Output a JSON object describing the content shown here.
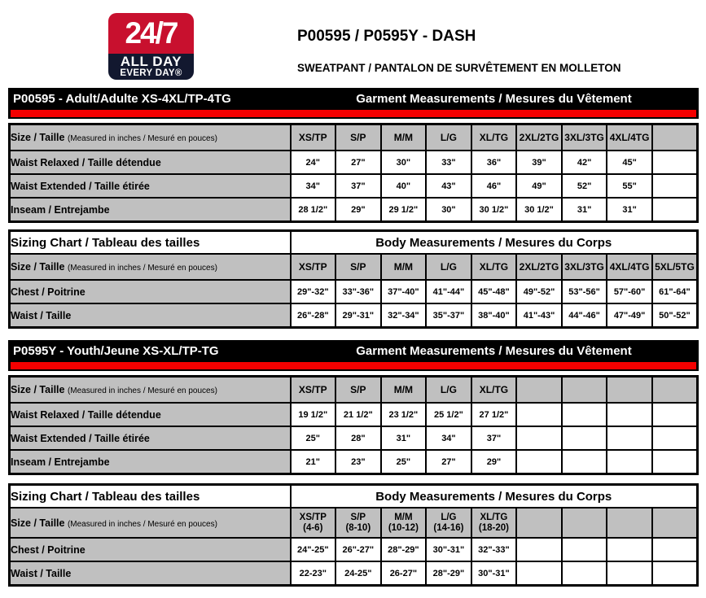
{
  "logo": {
    "top": "24/7",
    "mid": "ALL DAY",
    "bottom": "EVERY DAY®"
  },
  "header": {
    "title": "P00595 / P0595Y - DASH",
    "subtitle": "SWEATPANT / PANTALON DE SURVÊTEMENT EN MOLLETON"
  },
  "size_label": "Size / Taille",
  "size_note": "(Measured in inches / Mesuré en pouces)",
  "colors": {
    "logo_red": "#c8102e",
    "logo_navy": "#12182f",
    "stripe_red": "#f40000",
    "cell_gray": "#c0c0c0",
    "bar_black": "#000000"
  },
  "tables": [
    {
      "header_left": "P00595 - Adult/Adulte XS-4XL/TP-4TG",
      "header_right": "Garment Measurements / Mesures du Vêtement",
      "sizes": [
        "XS/TP",
        "S/P",
        "M/M",
        "L/G",
        "XL/TG",
        "2XL/2TG",
        "3XL/3TG",
        "4XL/4TG",
        ""
      ],
      "rows": [
        {
          "label": "Waist Relaxed / Taille détendue",
          "values": [
            "24\"",
            "27\"",
            "30\"",
            "33\"",
            "36\"",
            "39\"",
            "42\"",
            "45\"",
            ""
          ]
        },
        {
          "label": "Waist Extended / Taille étirée",
          "values": [
            "34\"",
            "37\"",
            "40\"",
            "43\"",
            "46\"",
            "49\"",
            "52\"",
            "55\"",
            ""
          ]
        },
        {
          "label": "Inseam / Entrejambe",
          "values": [
            "28 1/2\"",
            "29\"",
            "29 1/2\"",
            "30\"",
            "30 1/2\"",
            "30 1/2\"",
            "31\"",
            "31\"",
            ""
          ]
        }
      ]
    },
    {
      "header_left": "Sizing Chart / Tableau des tailles",
      "header_right": "Body Measurements / Mesures du Corps",
      "sizes": [
        "XS/TP",
        "S/P",
        "M/M",
        "L/G",
        "XL/TG",
        "2XL/2TG",
        "3XL/3TG",
        "4XL/4TG",
        "5XL/5TG"
      ],
      "rows": [
        {
          "label": "Chest / Poitrine",
          "values": [
            "29\"-32\"",
            "33\"-36\"",
            "37\"-40\"",
            "41\"-44\"",
            "45\"-48\"",
            "49\"-52\"",
            "53\"-56\"",
            "57\"-60\"",
            "61\"-64\""
          ]
        },
        {
          "label": "Waist / Taille",
          "values": [
            "26\"-28\"",
            "29\"-31\"",
            "32\"-34\"",
            "35\"-37\"",
            "38\"-40\"",
            "41\"-43\"",
            "44\"-46\"",
            "47\"-49\"",
            "50\"-52\""
          ]
        }
      ]
    },
    {
      "header_left": "P0595Y - Youth/Jeune XS-XL/TP-TG",
      "header_right": "Garment Measurements / Mesures du Vêtement",
      "sizes": [
        "XS/TP",
        "S/P",
        "M/M",
        "L/G",
        "XL/TG",
        "",
        "",
        "",
        ""
      ],
      "rows": [
        {
          "label": "Waist Relaxed / Taille détendue",
          "values": [
            "19 1/2\"",
            "21 1/2\"",
            "23 1/2\"",
            "25 1/2\"",
            "27 1/2\"",
            "",
            "",
            "",
            ""
          ]
        },
        {
          "label": "Waist Extended / Taille étirée",
          "values": [
            "25\"",
            "28\"",
            "31\"",
            "34\"",
            "37\"",
            "",
            "",
            "",
            ""
          ]
        },
        {
          "label": "Inseam / Entrejambe",
          "values": [
            "21\"",
            "23\"",
            "25\"",
            "27\"",
            "29\"",
            "",
            "",
            "",
            ""
          ]
        }
      ]
    },
    {
      "header_left": "Sizing Chart / Tableau des tailles",
      "header_right": "Body Measurements / Mesures du Corps",
      "sizes": [
        "XS/TP",
        "S/P",
        "M/M",
        "L/G",
        "XL/TG",
        "",
        "",
        "",
        ""
      ],
      "subsizes": [
        "(4-6)",
        "(8-10)",
        "(10-12)",
        "(14-16)",
        "(18-20)",
        "",
        "",
        "",
        ""
      ],
      "rows": [
        {
          "label": "Chest / Poitrine",
          "values": [
            "24\"-25\"",
            "26\"-27\"",
            "28\"-29\"",
            "30\"-31\"",
            "32\"-33\"",
            "",
            "",
            "",
            ""
          ]
        },
        {
          "label": "Waist / Taille",
          "values": [
            "22-23\"",
            "24-25\"",
            "26-27\"",
            "28\"-29\"",
            "30\"-31\"",
            "",
            "",
            "",
            ""
          ]
        }
      ]
    }
  ]
}
